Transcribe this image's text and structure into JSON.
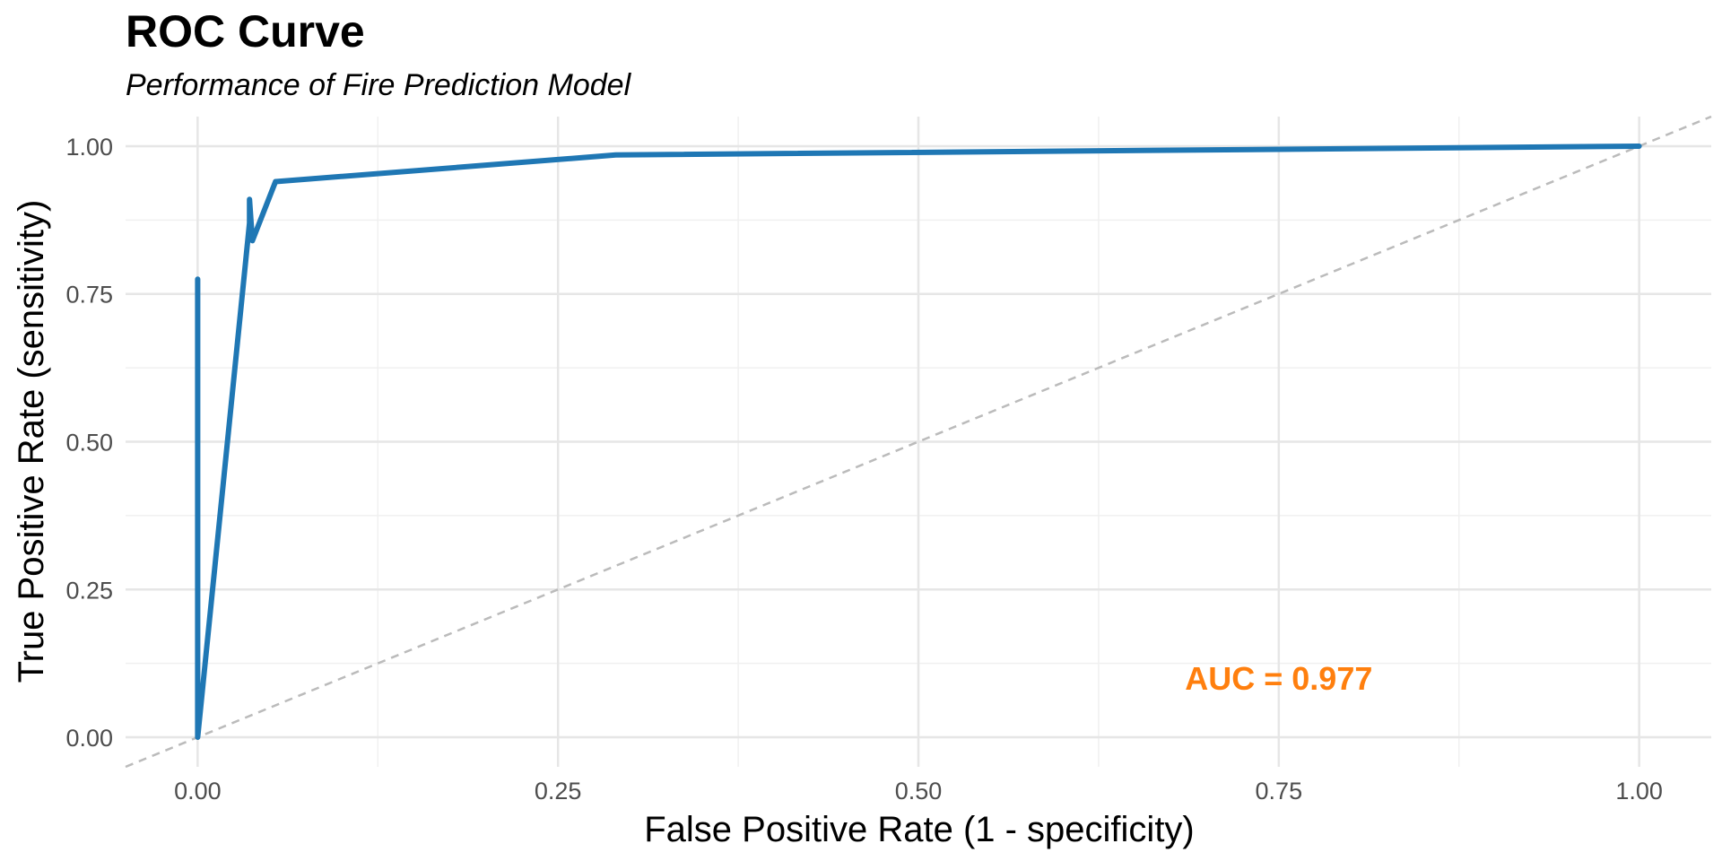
{
  "chart_data": {
    "type": "line",
    "title": "ROC Curve",
    "subtitle": "Performance of Fire Prediction Model",
    "xlabel": "False Positive Rate (1 - specificity)",
    "ylabel": "True Positive Rate (sensitivity)",
    "xlim": [
      -0.05,
      1.05
    ],
    "ylim": [
      -0.05,
      1.05
    ],
    "x_ticks": [
      0,
      0.25,
      0.5,
      0.75,
      1
    ],
    "x_tick_labels": [
      "0.00",
      "0.25",
      "0.50",
      "0.75",
      "1.00"
    ],
    "y_ticks": [
      0,
      0.25,
      0.5,
      0.75,
      1
    ],
    "y_tick_labels": [
      "0.00",
      "0.25",
      "0.50",
      "0.75",
      "1.00"
    ],
    "grid": true,
    "series": [
      {
        "color": "#1f77b4",
        "x": [
          0,
          0,
          0,
          0.036,
          0.036,
          0.038,
          0.054,
          0.29,
          1
        ],
        "y": [
          0.775,
          0.3,
          0,
          0.87,
          0.91,
          0.84,
          0.94,
          0.985,
          1
        ]
      }
    ],
    "reference_line": {
      "x": [
        -0.05,
        1.05
      ],
      "y": [
        -0.05,
        1.05
      ],
      "color": "#bbbbbb",
      "style": "dashed"
    },
    "annotation": {
      "text": "AUC = 0.977",
      "x": 0.75,
      "y": 0.1,
      "color": "#ff7f0e"
    }
  }
}
